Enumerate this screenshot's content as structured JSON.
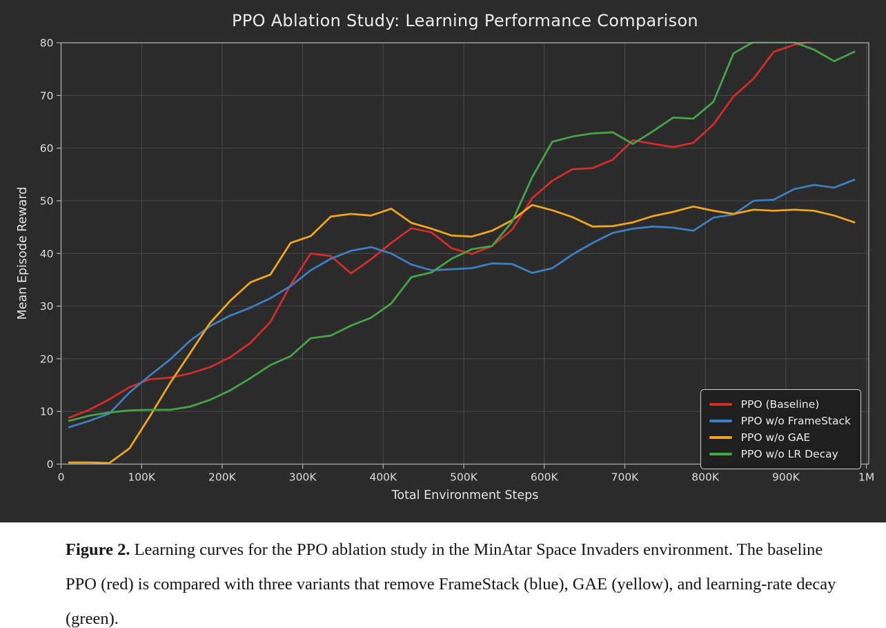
{
  "chart_data": {
    "type": "line",
    "title": "PPO Ablation Study: Learning Performance Comparison",
    "xlabel": "Total Environment Steps",
    "ylabel": "Mean Episode Reward",
    "xlim": [
      0,
      1000000
    ],
    "ylim": [
      0,
      80
    ],
    "grid": true,
    "legend_position": "lower right",
    "x_ticks": [
      {
        "value": 0,
        "label": "0"
      },
      {
        "value": 100000,
        "label": "100K"
      },
      {
        "value": 200000,
        "label": "200K"
      },
      {
        "value": 300000,
        "label": "300K"
      },
      {
        "value": 400000,
        "label": "400K"
      },
      {
        "value": 500000,
        "label": "500K"
      },
      {
        "value": 600000,
        "label": "600K"
      },
      {
        "value": 700000,
        "label": "700K"
      },
      {
        "value": 800000,
        "label": "800K"
      },
      {
        "value": 900000,
        "label": "900K"
      },
      {
        "value": 1000000,
        "label": "1M"
      }
    ],
    "y_ticks": [
      0,
      10,
      20,
      30,
      40,
      50,
      60,
      70,
      80
    ],
    "x": [
      10000,
      35000,
      60000,
      85000,
      110000,
      135000,
      160000,
      185000,
      210000,
      235000,
      260000,
      285000,
      310000,
      335000,
      360000,
      385000,
      410000,
      435000,
      460000,
      485000,
      510000,
      535000,
      560000,
      585000,
      610000,
      635000,
      660000,
      685000,
      710000,
      735000,
      760000,
      785000,
      810000,
      835000,
      860000,
      885000,
      910000,
      935000,
      960000,
      985000
    ],
    "series": [
      {
        "name": "PPO (Baseline)",
        "color": "#d62b2b",
        "values": [
          8.8,
          10.3,
          12.3,
          14.6,
          16.1,
          16.4,
          17.2,
          18.4,
          20.3,
          23.0,
          27.0,
          34.0,
          40.0,
          39.5,
          36.2,
          38.9,
          42.0,
          44.8,
          44.0,
          41.0,
          39.9,
          41.4,
          44.5,
          50.5,
          53.8,
          56.0,
          56.2,
          57.8,
          61.5,
          60.8,
          60.2,
          61.0,
          64.5,
          69.8,
          73.2,
          78.3,
          79.6,
          80.4,
          80.8,
          81.2
        ]
      },
      {
        "name": "PPO w/o FrameStack",
        "color": "#3d7fc1",
        "values": [
          7.0,
          8.2,
          9.6,
          13.6,
          16.8,
          19.8,
          23.4,
          26.2,
          28.2,
          29.7,
          31.5,
          33.8,
          36.8,
          39.0,
          40.5,
          41.2,
          40.0,
          37.9,
          36.8,
          37.0,
          37.2,
          38.1,
          38.0,
          36.3,
          37.2,
          39.8,
          42.0,
          43.9,
          44.7,
          45.1,
          44.9,
          44.3,
          46.8,
          47.4,
          50.0,
          50.2,
          52.2,
          53.0,
          52.5,
          54.0
        ]
      },
      {
        "name": "PPO w/o GAE",
        "color": "#f0a51e",
        "values": [
          0.3,
          0.3,
          0.2,
          3.0,
          9.0,
          15.3,
          21.0,
          26.8,
          31.0,
          34.5,
          36.0,
          42.0,
          43.3,
          47.0,
          47.5,
          47.2,
          48.5,
          45.8,
          44.7,
          43.4,
          43.2,
          44.3,
          46.3,
          49.2,
          48.2,
          46.9,
          45.1,
          45.2,
          45.9,
          47.1,
          47.9,
          48.9,
          48.1,
          47.5,
          48.3,
          48.1,
          48.3,
          48.1,
          47.2,
          45.9
        ]
      },
      {
        "name": "PPO w/o LR Decay",
        "color": "#46a347",
        "values": [
          8.2,
          9.2,
          9.8,
          10.2,
          10.3,
          10.3,
          10.9,
          12.2,
          14.0,
          16.3,
          18.8,
          20.5,
          23.9,
          24.4,
          26.3,
          27.8,
          30.5,
          35.5,
          36.4,
          39.0,
          40.8,
          41.4,
          46.0,
          54.5,
          61.2,
          62.2,
          62.8,
          63.0,
          60.8,
          63.2,
          65.8,
          65.6,
          68.8,
          78.0,
          80.2,
          80.3,
          80.1,
          78.7,
          76.5,
          78.3
        ]
      }
    ]
  },
  "theme": {
    "chart_bg": "#2b2b2b",
    "grid_color": "#4a4a4a",
    "spine_color": "#adadad",
    "tick_text_color": "#dcdcdc",
    "legend_bg": "#1f1f1f",
    "legend_border": "#cfcfcf"
  },
  "caption": {
    "label": "Figure 2.",
    "text": " Learning curves for the PPO ablation study in the MinAtar Space Invaders environment. The baseline PPO (red) is compared with three variants that remove FrameStack (blue), GAE (yellow), and learning-rate decay (green)."
  }
}
